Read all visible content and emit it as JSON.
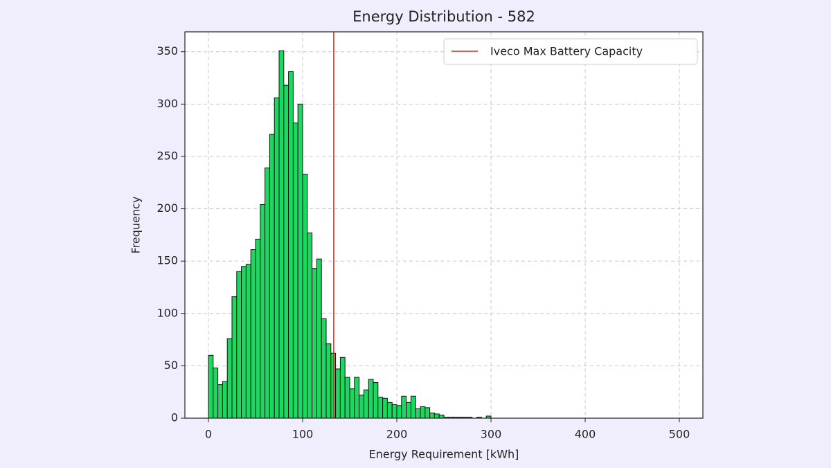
{
  "chart_data": {
    "type": "histogram",
    "title": "Energy Distribution - 582",
    "x_label": "Energy Requirement [kWh]",
    "y_label": "Frequency",
    "bins": [
      0,
      5,
      10,
      15,
      20,
      25,
      30,
      35,
      40,
      45,
      50,
      55,
      60,
      65,
      70,
      75,
      80,
      85,
      90,
      95,
      100,
      105,
      110,
      115,
      120,
      125,
      130,
      135,
      140,
      145,
      150,
      155,
      160,
      165,
      170,
      175,
      180,
      185,
      190,
      195,
      200,
      205,
      210,
      215,
      220,
      225,
      230,
      235,
      240,
      245,
      250,
      255,
      260,
      265,
      270,
      275,
      280,
      285,
      290,
      295,
      300,
      305,
      310,
      315,
      320,
      325,
      330,
      335,
      340,
      345,
      350,
      355,
      360,
      365,
      370,
      375,
      380,
      385,
      390,
      395,
      400,
      405,
      410,
      415,
      420,
      425,
      430,
      435,
      440,
      445,
      450,
      455,
      460,
      465,
      470,
      475,
      480,
      485,
      490,
      495,
      500
    ],
    "values": [
      60,
      48,
      32,
      35,
      76,
      116,
      140,
      145,
      147,
      161,
      171,
      204,
      239,
      271,
      306,
      351,
      318,
      331,
      282,
      300,
      233,
      177,
      143,
      152,
      95,
      71,
      62,
      47,
      58,
      39,
      28,
      39,
      22,
      27,
      37,
      34,
      20,
      19,
      15,
      13,
      12,
      21,
      15,
      21,
      9,
      11,
      10,
      5,
      4,
      3,
      1,
      1,
      1,
      1,
      1,
      1,
      0,
      1,
      0,
      2,
      0,
      0,
      0,
      0,
      0,
      0,
      0,
      0,
      0,
      0,
      0,
      0,
      0,
      0,
      0,
      0,
      0,
      0,
      0,
      0,
      0,
      0,
      0,
      0,
      0,
      0,
      0,
      0,
      0,
      0,
      0,
      0,
      0,
      0,
      0,
      0,
      0,
      0,
      0,
      0
    ],
    "color": "#1ed760",
    "edge_color": "#111111",
    "vline": {
      "value": 133,
      "label": "Iveco Max Battery Capacity",
      "color": "#e8201c"
    },
    "xlim": [
      -25,
      525
    ],
    "ylim": [
      0,
      369
    ],
    "xticks": [
      0,
      100,
      200,
      300,
      400,
      500
    ],
    "yticks": [
      0,
      50,
      100,
      150,
      200,
      250,
      300,
      350
    ],
    "grid": true,
    "legend": "upper right"
  }
}
